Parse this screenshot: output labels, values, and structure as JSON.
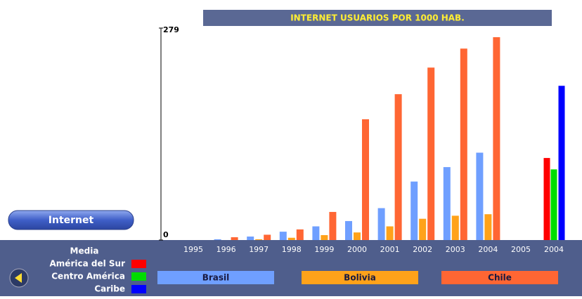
{
  "chart_data": {
    "type": "bar",
    "title": "INTERNET USUARIOS POR 1000 HAB.",
    "categories": [
      "1995",
      "1996",
      "1997",
      "1998",
      "1999",
      "2000",
      "2001",
      "2002",
      "2003",
      "2004",
      "2005"
    ],
    "series": [
      {
        "name": "Brasil",
        "color": "#6f9fff",
        "values": [
          null,
          1,
          4.6,
          11,
          18,
          25,
          42,
          77,
          96,
          115,
          null
        ]
      },
      {
        "name": "Bolivia",
        "color": "#ffa21a",
        "values": [
          null,
          null,
          1,
          3,
          6.5,
          10,
          18,
          28,
          32,
          34,
          null
        ]
      },
      {
        "name": "Chile",
        "color": "#ff6633",
        "values": [
          null,
          3.7,
          7,
          14,
          37,
          159,
          192,
          227,
          252,
          267,
          null
        ]
      }
    ],
    "ylim": [
      0,
      279
    ],
    "yticks": [
      0,
      279
    ],
    "media": {
      "title": "Media",
      "category": "2004",
      "series": [
        {
          "name": "América del Sur",
          "color": "#ff0000",
          "value": 108
        },
        {
          "name": "Centro América",
          "color": "#00dd00",
          "value": 93
        },
        {
          "name": "Caribe",
          "color": "#0000ff",
          "value": 203
        }
      ]
    },
    "button": "Internet"
  }
}
